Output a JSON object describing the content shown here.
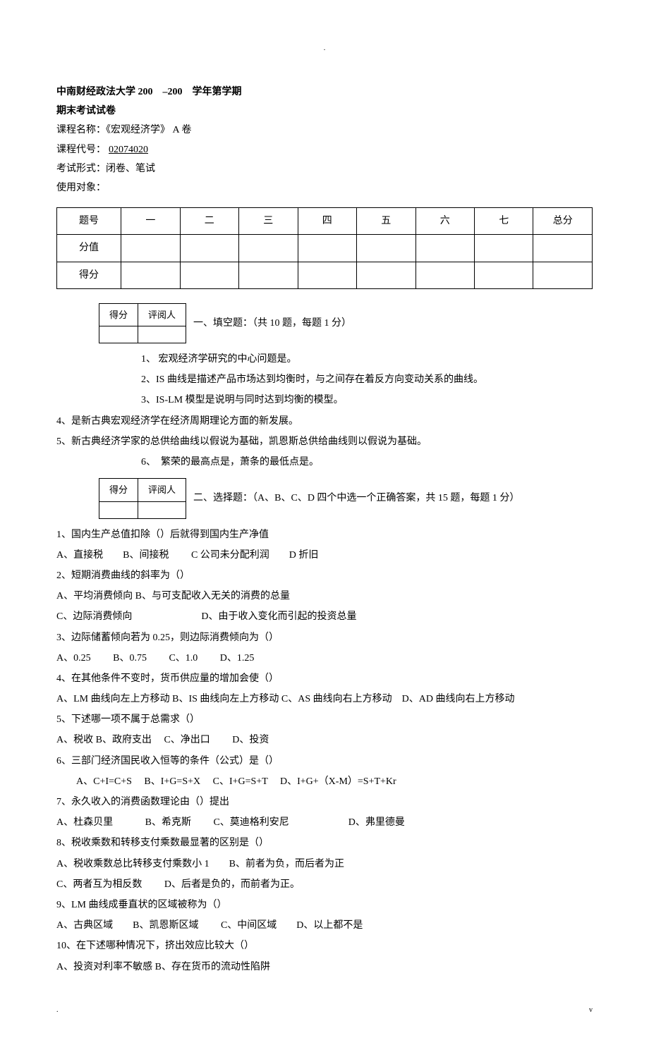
{
  "dot": ".",
  "header": {
    "line1": "中南财经政法大学 200　–200　学年第学期",
    "line2": "期末考试试卷"
  },
  "info": {
    "course_label": "课程名称：",
    "course_value": "《宏观经济学》 A 卷",
    "code_label": "课程代号：",
    "code_value": "02074020",
    "exam_label": "考试形式：",
    "exam_value": "闭卷、笔试",
    "target_label": "使用对象：",
    "target_value": ""
  },
  "score_table": {
    "headers": [
      "题号",
      "一",
      "二",
      "三",
      "四",
      "五",
      "六",
      "七",
      "总分"
    ],
    "row1": "分值",
    "row2": "得分"
  },
  "mini_table": {
    "h1": "得分",
    "h2": "评阅人"
  },
  "section1": {
    "title": "一、填空题：（共 10 题，每题 1 分）",
    "q1": "1、 宏观经济学研究的中心问题是。",
    "q2": "2、IS 曲线是描述产品市场达到均衡时，与之间存在着反方向变动关系的曲线。",
    "q3": "3、IS-LM 模型是说明与同时达到均衡的模型。",
    "q4": "4、是新古典宏观经济学在经济周期理论方面的新发展。",
    "q5": "5、新古典经济学家的总供给曲线以假说为基础，凯恩斯总供给曲线则以假说为基础。",
    "q6": "6、　繁荣的最高点是，萧条的最低点是。"
  },
  "section2": {
    "title": "二、选择题：（A、B、C、D 四个中选一个正确答案，共 15 题，每题 1 分）",
    "q1": "1、国内生产总值扣除（）后就得到国内生产净值",
    "q1o": "A、直接税　　B、间接税　　 C 公司未分配利润　　D 折旧",
    "q2": "2、短期消费曲线的斜率为（）",
    "q2oa": "A、平均消费倾向 B、与可支配收入无关的消费的总量",
    "q2ob": "C、边际消费倾向　　　　　　　D、由于收入变化而引起的投资总量",
    "q3": "3、边际储蓄倾向若为 0.25，则边际消费倾向为（）",
    "q3o": "A、0.25　　 B、0.75　　 C、1.0　　 D、1.25",
    "q4": "4、在其他条件不变时，货币供应量的增加会使（）",
    "q4o": "A、LM 曲线向左上方移动 B、IS 曲线向左上方移动 C、AS 曲线向右上方移动　D、AD 曲线向右上方移动",
    "q5": "5、下述哪一项不属于总需求（）",
    "q5o": "A、税收 B、政府支出　 C、净出口　　 D、投资",
    "q6": "6、三部门经济国民收入恒等的条件（公式）是（）",
    "q6o": "　　A、C+I=C+S　 B、I+G=S+X　 C、I+G=S+T　 D、I+G+（X-M）=S+T+Kr",
    "q7": "7、永久收入的消费函数理论由（）提出",
    "q7o": "A、杜森贝里　　　 B、希克斯　　 C、莫迪格利安尼　　　　　　D、弗里德曼",
    "q8": "8、税收乘数和转移支付乘数最显著的区别是（）",
    "q8oa": "A、税收乘数总比转移支付乘数小 1　　B、前者为负，而后者为正",
    "q8ob": "C、两者互为相反数　　 D、后者是负的，而前者为正。",
    "q9": "9、LM 曲线成垂直状的区域被称为（）",
    "q9o": "A、古典区域　　B、凯恩斯区域　　 C、中间区域　　D、以上都不是",
    "q10": "10、在下述哪种情况下，挤出效应比较大（）",
    "q10o": "A、投资对利率不敏感 B、存在货币的流动性陷阱"
  },
  "footer": {
    "left": ".",
    "right": "v"
  }
}
